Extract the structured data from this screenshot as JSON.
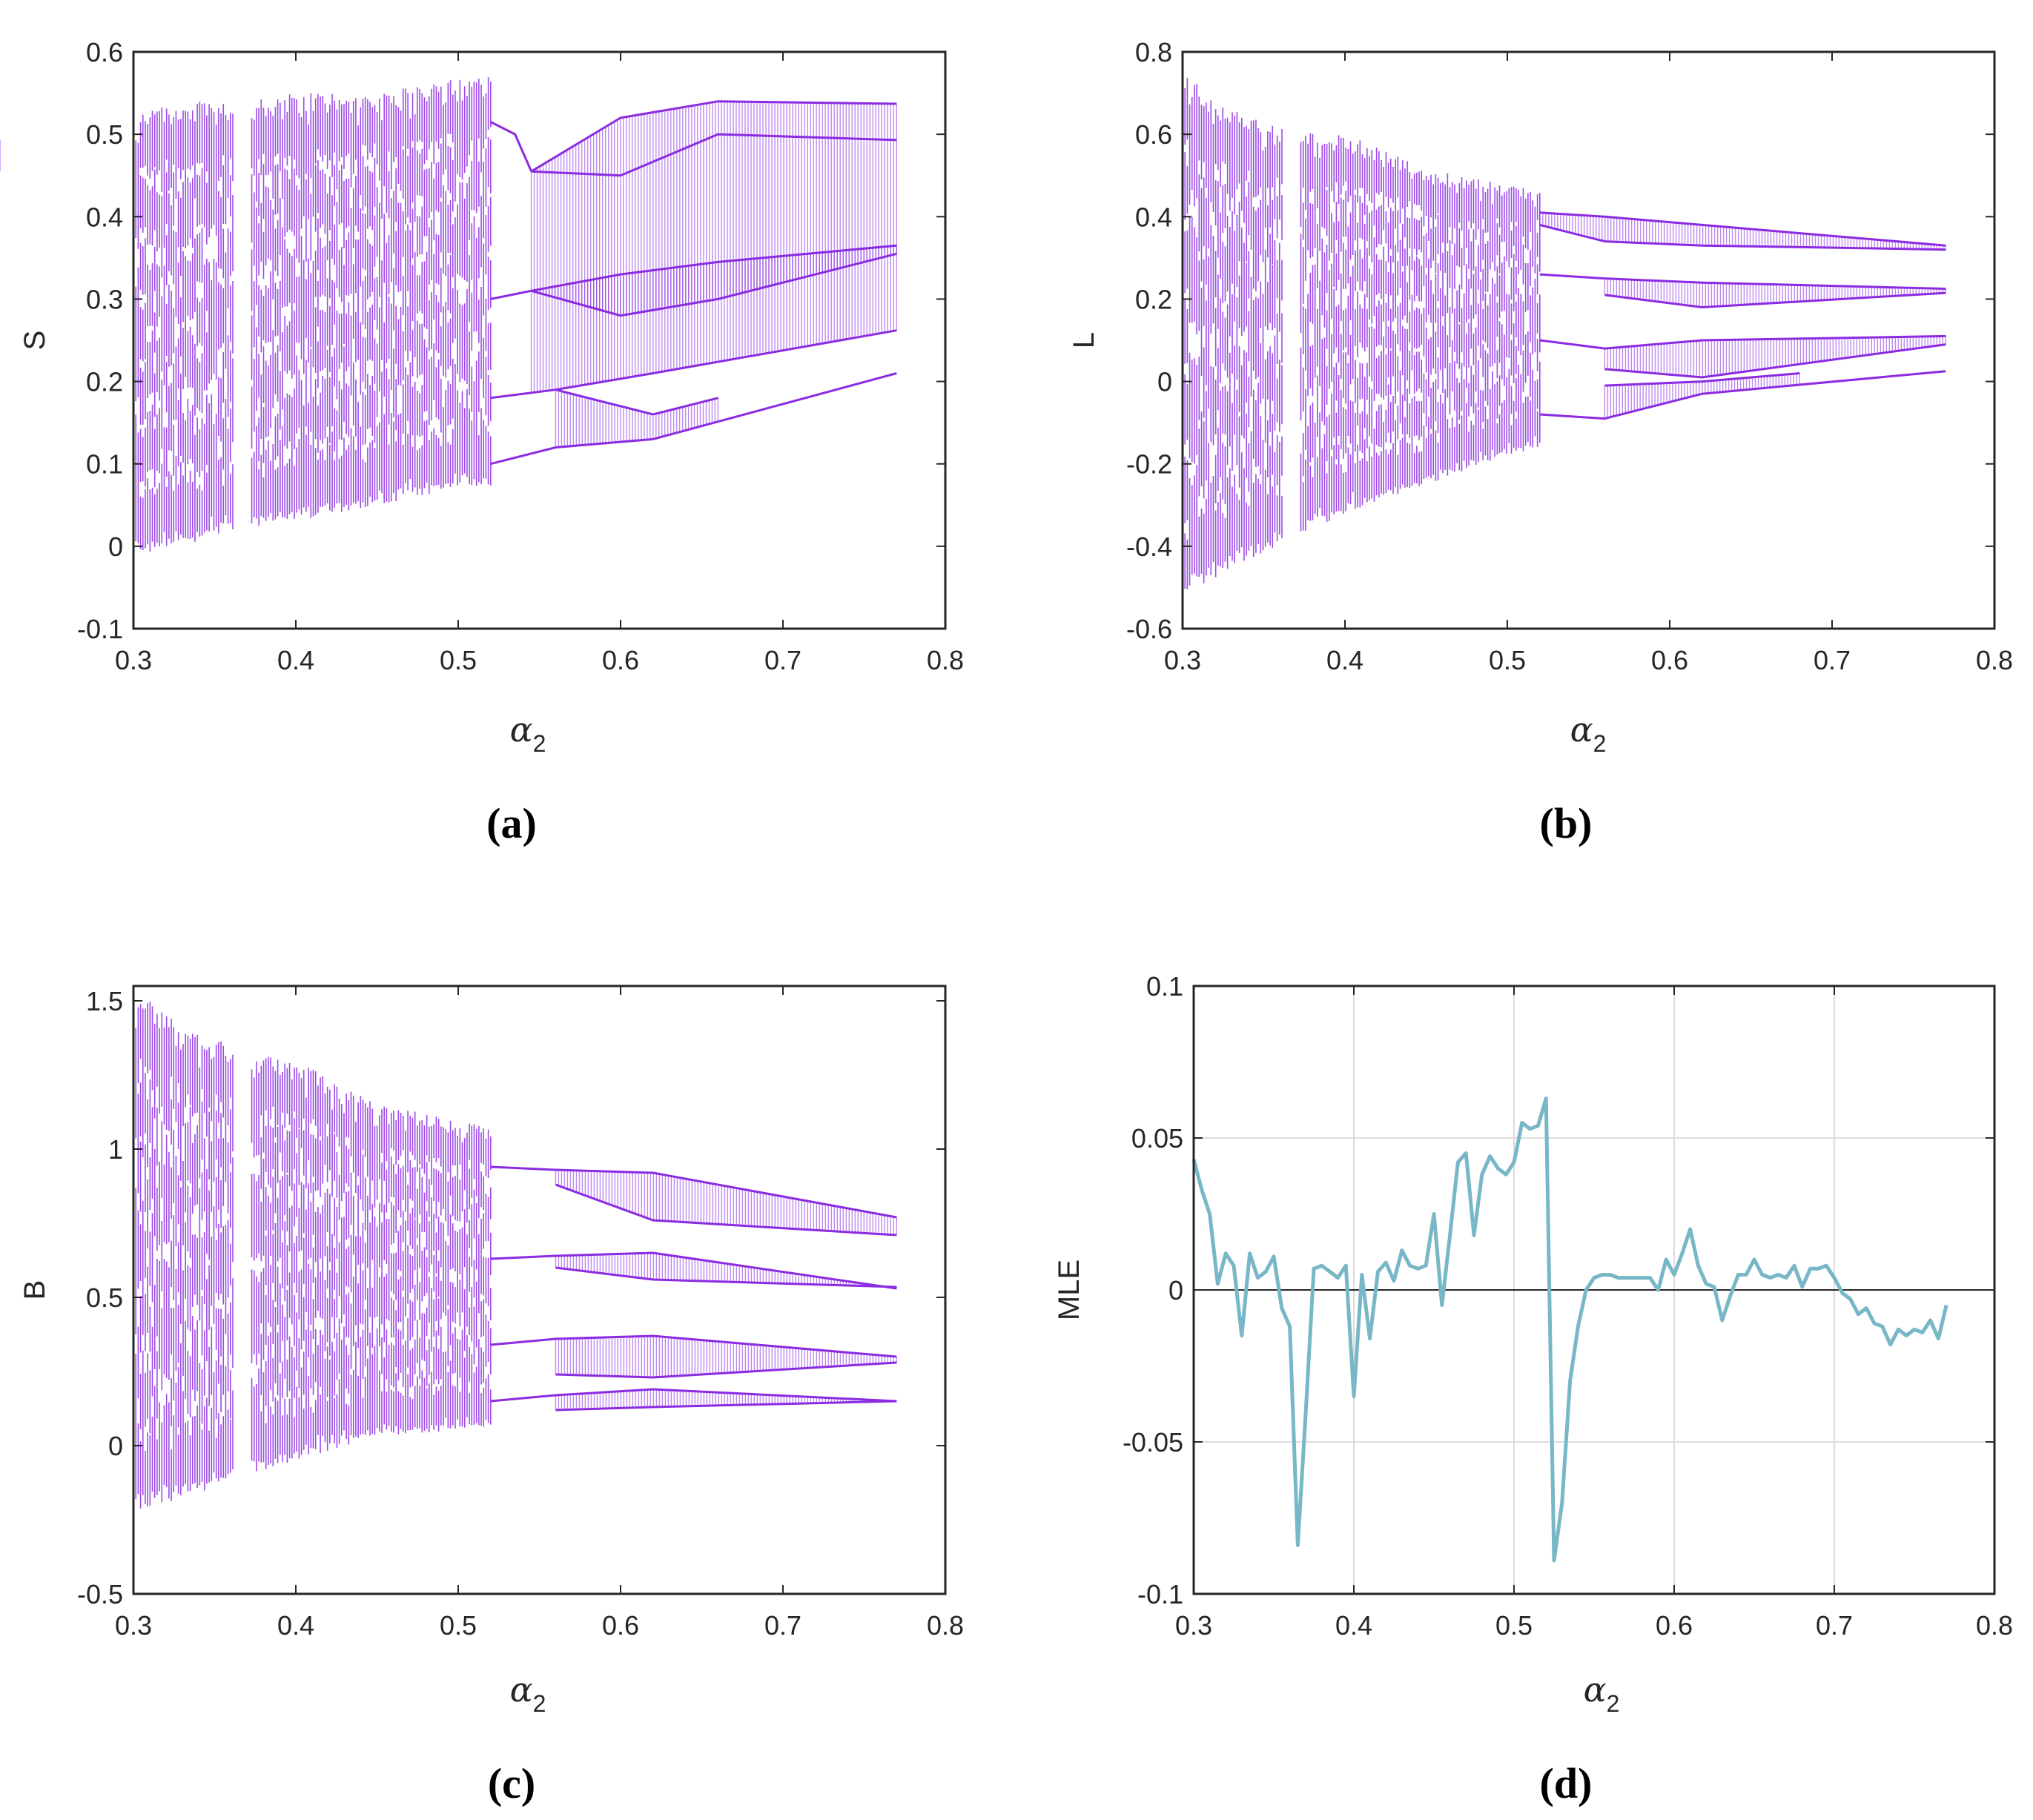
{
  "chart_data": [
    {
      "id": "a",
      "type": "scatter",
      "caption": "(a)",
      "xlabel_symbol": "α",
      "xlabel_subscript": "2",
      "ylabel": "S",
      "xlim": [
        0.3,
        0.8
      ],
      "ylim": [
        -0.1,
        0.6
      ],
      "xticks": [
        "0.3",
        "0.4",
        "0.5",
        "0.6",
        "0.7",
        "0.8"
      ],
      "yticks": [
        "-0.1",
        "0",
        "0.1",
        "0.2",
        "0.3",
        "0.4",
        "0.5",
        "0.6"
      ],
      "grid": false,
      "color": "#8b2be2",
      "x_range": [
        0.3,
        0.77
      ],
      "chaotic_envelope": [
        {
          "x": 0.3,
          "min": -0.01,
          "max": 0.53
        },
        {
          "x": 0.33,
          "min": 0.0,
          "max": 0.54
        },
        {
          "x": 0.36,
          "min": 0.02,
          "max": 0.54
        },
        {
          "x": 0.37,
          "min": 0.02,
          "max": 0.54
        },
        {
          "x": 0.4,
          "min": 0.03,
          "max": 0.55
        },
        {
          "x": 0.45,
          "min": 0.05,
          "max": 0.55
        },
        {
          "x": 0.5,
          "min": 0.07,
          "max": 0.57
        },
        {
          "x": 0.52,
          "min": 0.07,
          "max": 0.57
        }
      ],
      "periodic_branches": [
        [
          {
            "x": 0.52,
            "y": 0.515
          },
          {
            "x": 0.535,
            "y": 0.5
          },
          {
            "x": 0.545,
            "y": 0.455
          }
        ],
        [
          {
            "x": 0.545,
            "y": 0.455
          },
          {
            "x": 0.6,
            "y": 0.45
          },
          {
            "x": 0.66,
            "y": 0.5
          },
          {
            "x": 0.77,
            "y": 0.493
          }
        ],
        [
          {
            "x": 0.545,
            "y": 0.455
          },
          {
            "x": 0.6,
            "y": 0.52
          },
          {
            "x": 0.66,
            "y": 0.54
          },
          {
            "x": 0.77,
            "y": 0.537
          }
        ],
        [
          {
            "x": 0.52,
            "y": 0.3
          },
          {
            "x": 0.545,
            "y": 0.31
          },
          {
            "x": 0.6,
            "y": 0.28
          },
          {
            "x": 0.66,
            "y": 0.3
          },
          {
            "x": 0.77,
            "y": 0.355
          }
        ],
        [
          {
            "x": 0.545,
            "y": 0.31
          },
          {
            "x": 0.6,
            "y": 0.33
          },
          {
            "x": 0.66,
            "y": 0.345
          },
          {
            "x": 0.77,
            "y": 0.365
          }
        ],
        [
          {
            "x": 0.52,
            "y": 0.18
          },
          {
            "x": 0.56,
            "y": 0.19
          },
          {
            "x": 0.62,
            "y": 0.21
          },
          {
            "x": 0.77,
            "y": 0.262
          }
        ],
        [
          {
            "x": 0.56,
            "y": 0.19
          },
          {
            "x": 0.62,
            "y": 0.16
          },
          {
            "x": 0.66,
            "y": 0.18
          }
        ],
        [
          {
            "x": 0.52,
            "y": 0.1
          },
          {
            "x": 0.56,
            "y": 0.12
          },
          {
            "x": 0.62,
            "y": 0.13
          },
          {
            "x": 0.77,
            "y": 0.21
          }
        ]
      ]
    },
    {
      "id": "b",
      "type": "scatter",
      "caption": "(b)",
      "xlabel_symbol": "α",
      "xlabel_subscript": "2",
      "ylabel": "L",
      "xlim": [
        0.3,
        0.8
      ],
      "ylim": [
        -0.6,
        0.8
      ],
      "xticks": [
        "0.3",
        "0.4",
        "0.5",
        "0.6",
        "0.7",
        "0.8"
      ],
      "yticks": [
        "-0.6",
        "-0.4",
        "-0.2",
        "0",
        "0.2",
        "0.4",
        "0.6",
        "0.8"
      ],
      "grid": false,
      "color": "#8b2be2",
      "x_range": [
        0.3,
        0.77
      ],
      "chaotic_envelope": [
        {
          "x": 0.3,
          "min": -0.53,
          "max": 0.75
        },
        {
          "x": 0.33,
          "min": -0.45,
          "max": 0.66
        },
        {
          "x": 0.37,
          "min": -0.38,
          "max": 0.61
        },
        {
          "x": 0.4,
          "min": -0.32,
          "max": 0.6
        },
        {
          "x": 0.45,
          "min": -0.25,
          "max": 0.52
        },
        {
          "x": 0.5,
          "min": -0.18,
          "max": 0.48
        },
        {
          "x": 0.52,
          "min": -0.16,
          "max": 0.47
        }
      ],
      "periodic_branches": [
        [
          {
            "x": 0.52,
            "y": 0.41
          },
          {
            "x": 0.56,
            "y": 0.4
          },
          {
            "x": 0.62,
            "y": 0.38
          },
          {
            "x": 0.77,
            "y": 0.33
          }
        ],
        [
          {
            "x": 0.52,
            "y": 0.38
          },
          {
            "x": 0.56,
            "y": 0.34
          },
          {
            "x": 0.62,
            "y": 0.33
          },
          {
            "x": 0.77,
            "y": 0.32
          }
        ],
        [
          {
            "x": 0.52,
            "y": 0.26
          },
          {
            "x": 0.56,
            "y": 0.25
          },
          {
            "x": 0.62,
            "y": 0.24
          },
          {
            "x": 0.77,
            "y": 0.225
          }
        ],
        [
          {
            "x": 0.56,
            "y": 0.21
          },
          {
            "x": 0.62,
            "y": 0.18
          },
          {
            "x": 0.77,
            "y": 0.215
          }
        ],
        [
          {
            "x": 0.52,
            "y": 0.1
          },
          {
            "x": 0.56,
            "y": 0.08
          },
          {
            "x": 0.62,
            "y": 0.1
          },
          {
            "x": 0.77,
            "y": 0.11
          }
        ],
        [
          {
            "x": 0.56,
            "y": 0.03
          },
          {
            "x": 0.62,
            "y": 0.01
          },
          {
            "x": 0.77,
            "y": 0.09
          }
        ],
        [
          {
            "x": 0.52,
            "y": -0.08
          },
          {
            "x": 0.56,
            "y": -0.09
          },
          {
            "x": 0.62,
            "y": -0.03
          },
          {
            "x": 0.77,
            "y": 0.025
          }
        ],
        [
          {
            "x": 0.56,
            "y": -0.01
          },
          {
            "x": 0.62,
            "y": 0.0
          },
          {
            "x": 0.68,
            "y": 0.02
          }
        ]
      ]
    },
    {
      "id": "c",
      "type": "scatter",
      "caption": "(c)",
      "xlabel_symbol": "α",
      "xlabel_subscript": "2",
      "ylabel": "B",
      "xlim": [
        0.3,
        0.8
      ],
      "ylim": [
        -0.5,
        1.55
      ],
      "xticks": [
        "0.3",
        "0.4",
        "0.5",
        "0.6",
        "0.7",
        "0.8"
      ],
      "yticks": [
        "-0.5",
        "0",
        "0.5",
        "1",
        "1.5"
      ],
      "ytick_values": [
        -0.5,
        0,
        0.5,
        1,
        1.5
      ],
      "grid": false,
      "color": "#8b2be2",
      "x_range": [
        0.3,
        0.77
      ],
      "chaotic_envelope": [
        {
          "x": 0.3,
          "min": -0.22,
          "max": 1.55
        },
        {
          "x": 0.33,
          "min": -0.18,
          "max": 1.42
        },
        {
          "x": 0.37,
          "min": -0.1,
          "max": 1.33
        },
        {
          "x": 0.4,
          "min": -0.05,
          "max": 1.3
        },
        {
          "x": 0.45,
          "min": 0.03,
          "max": 1.15
        },
        {
          "x": 0.5,
          "min": 0.05,
          "max": 1.1
        },
        {
          "x": 0.52,
          "min": 0.06,
          "max": 1.08
        }
      ],
      "periodic_branches": [
        [
          {
            "x": 0.52,
            "y": 0.94
          },
          {
            "x": 0.56,
            "y": 0.93
          },
          {
            "x": 0.62,
            "y": 0.92
          },
          {
            "x": 0.77,
            "y": 0.77
          }
        ],
        [
          {
            "x": 0.56,
            "y": 0.88
          },
          {
            "x": 0.62,
            "y": 0.76
          },
          {
            "x": 0.77,
            "y": 0.71
          }
        ],
        [
          {
            "x": 0.52,
            "y": 0.63
          },
          {
            "x": 0.56,
            "y": 0.64
          },
          {
            "x": 0.62,
            "y": 0.65
          },
          {
            "x": 0.77,
            "y": 0.53
          }
        ],
        [
          {
            "x": 0.56,
            "y": 0.6
          },
          {
            "x": 0.62,
            "y": 0.56
          },
          {
            "x": 0.77,
            "y": 0.535
          }
        ],
        [
          {
            "x": 0.52,
            "y": 0.34
          },
          {
            "x": 0.56,
            "y": 0.36
          },
          {
            "x": 0.62,
            "y": 0.37
          },
          {
            "x": 0.77,
            "y": 0.3
          }
        ],
        [
          {
            "x": 0.56,
            "y": 0.24
          },
          {
            "x": 0.62,
            "y": 0.23
          },
          {
            "x": 0.77,
            "y": 0.28
          }
        ],
        [
          {
            "x": 0.52,
            "y": 0.15
          },
          {
            "x": 0.56,
            "y": 0.17
          },
          {
            "x": 0.62,
            "y": 0.19
          },
          {
            "x": 0.77,
            "y": 0.15
          }
        ],
        [
          {
            "x": 0.56,
            "y": 0.12
          },
          {
            "x": 0.62,
            "y": 0.13
          },
          {
            "x": 0.77,
            "y": 0.15
          }
        ]
      ]
    },
    {
      "id": "d",
      "type": "line",
      "caption": "(d)",
      "xlabel_symbol": "α",
      "xlabel_subscript": "2",
      "ylabel": "MLE",
      "xlim": [
        0.3,
        0.8
      ],
      "ylim": [
        -0.1,
        0.1
      ],
      "xticks": [
        "0.3",
        "0.4",
        "0.5",
        "0.6",
        "0.7",
        "0.8"
      ],
      "yticks": [
        "-0.1",
        "-0.05",
        "0",
        "0.05",
        "0.1"
      ],
      "ytick_values": [
        -0.1,
        -0.05,
        0,
        0.05,
        0.1
      ],
      "grid": true,
      "color": "#77b7c6",
      "zero_line": true,
      "series": [
        {
          "name": "MLE",
          "x": [
            0.3,
            0.305,
            0.31,
            0.315,
            0.32,
            0.325,
            0.33,
            0.335,
            0.34,
            0.345,
            0.35,
            0.355,
            0.36,
            0.365,
            0.37,
            0.375,
            0.38,
            0.385,
            0.39,
            0.395,
            0.4,
            0.405,
            0.41,
            0.415,
            0.42,
            0.425,
            0.43,
            0.435,
            0.44,
            0.445,
            0.45,
            0.455,
            0.46,
            0.465,
            0.47,
            0.475,
            0.48,
            0.485,
            0.49,
            0.495,
            0.5,
            0.505,
            0.51,
            0.515,
            0.52,
            0.525,
            0.53,
            0.535,
            0.54,
            0.545,
            0.55,
            0.555,
            0.56,
            0.565,
            0.57,
            0.575,
            0.58,
            0.585,
            0.59,
            0.595,
            0.6,
            0.605,
            0.61,
            0.615,
            0.62,
            0.625,
            0.63,
            0.635,
            0.64,
            0.645,
            0.65,
            0.655,
            0.66,
            0.665,
            0.67,
            0.675,
            0.68,
            0.685,
            0.69,
            0.695,
            0.7,
            0.705,
            0.71,
            0.715,
            0.72,
            0.725,
            0.73,
            0.735,
            0.74,
            0.745,
            0.75,
            0.755,
            0.76,
            0.765,
            0.77
          ],
          "y": [
            0.043,
            0.033,
            0.025,
            0.002,
            0.012,
            0.008,
            -0.015,
            0.012,
            0.004,
            0.006,
            0.011,
            -0.006,
            -0.012,
            -0.084,
            -0.04,
            0.007,
            0.008,
            0.006,
            0.004,
            0.008,
            -0.035,
            0.005,
            -0.016,
            0.006,
            0.009,
            0.003,
            0.013,
            0.008,
            0.007,
            0.008,
            0.025,
            -0.005,
            0.018,
            0.042,
            0.045,
            0.018,
            0.038,
            0.044,
            0.04,
            0.038,
            0.042,
            0.055,
            0.053,
            0.054,
            0.063,
            -0.089,
            -0.07,
            -0.03,
            -0.012,
            0.0,
            0.004,
            0.005,
            0.005,
            0.004,
            0.004,
            0.004,
            0.004,
            0.004,
            0.0,
            0.01,
            0.005,
            0.012,
            0.02,
            0.008,
            0.002,
            0.001,
            -0.01,
            -0.002,
            0.005,
            0.005,
            0.01,
            0.005,
            0.004,
            0.005,
            0.004,
            0.008,
            0.001,
            0.007,
            0.007,
            0.008,
            0.004,
            -0.001,
            -0.003,
            -0.008,
            -0.006,
            -0.011,
            -0.012,
            -0.018,
            -0.013,
            -0.015,
            -0.013,
            -0.014,
            -0.01,
            -0.016,
            -0.005
          ]
        }
      ]
    }
  ]
}
